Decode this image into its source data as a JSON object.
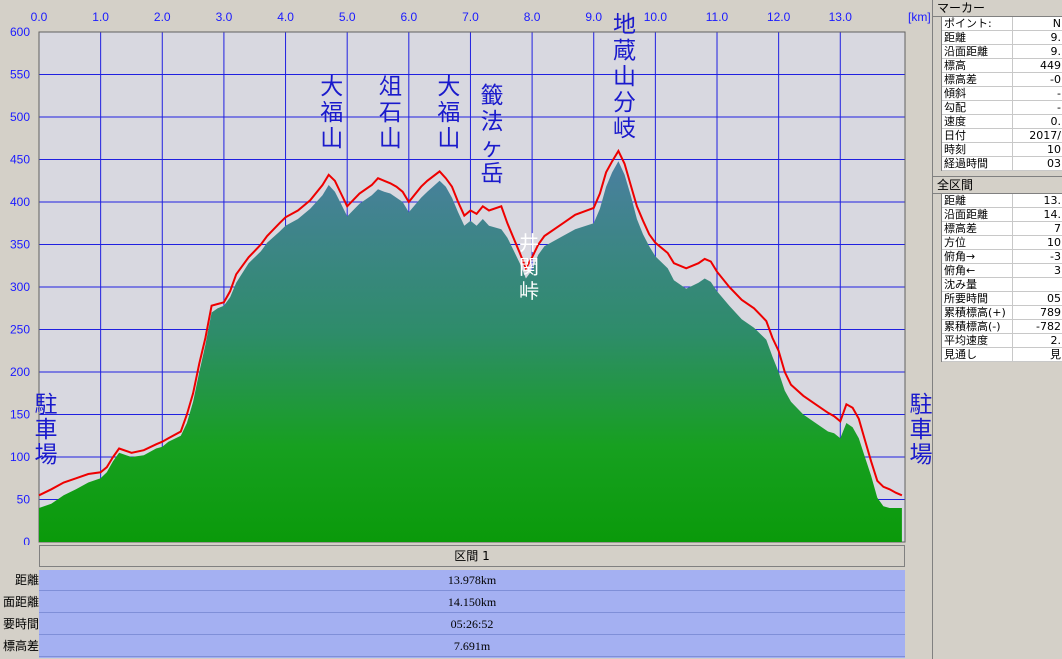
{
  "chart_data": {
    "type": "area",
    "xlabel": "",
    "ylabel": "",
    "x_unit": "[km]",
    "xlim": [
      0,
      14.05
    ],
    "ylim": [
      0,
      600
    ],
    "x_ticks": [
      "0.0",
      "1.0",
      "2.0",
      "3.0",
      "4.0",
      "5.0",
      "6.0",
      "7.0",
      "8.0",
      "9.0",
      "10.0",
      "11.0",
      "12.0",
      "13.0"
    ],
    "y_ticks": [
      "0",
      "50",
      "100",
      "150",
      "200",
      "250",
      "300",
      "350",
      "400",
      "450",
      "500",
      "550",
      "600"
    ],
    "grid": true,
    "series": [
      {
        "color": "#e00000",
        "x": [
          0,
          0.2,
          0.4,
          0.6,
          0.8,
          1.0,
          1.1,
          1.2,
          1.3,
          1.5,
          1.7,
          1.9,
          2.0,
          2.1,
          2.3,
          2.4,
          2.5,
          2.6,
          2.7,
          2.8,
          2.9,
          3.0,
          3.1,
          3.2,
          3.4,
          3.6,
          3.7,
          3.9,
          4.0,
          4.2,
          4.4,
          4.6,
          4.7,
          4.8,
          4.9,
          5.0,
          5.2,
          5.4,
          5.5,
          5.6,
          5.7,
          5.8,
          5.9,
          6.0,
          6.2,
          6.3,
          6.5,
          6.6,
          6.7,
          6.8,
          6.9,
          7.0,
          7.1,
          7.2,
          7.3,
          7.5,
          7.6,
          7.8,
          7.9,
          8.0,
          8.1,
          8.2,
          8.5,
          8.7,
          9.0,
          9.1,
          9.2,
          9.3,
          9.4,
          9.5,
          9.6,
          9.7,
          9.8,
          9.9,
          10.0,
          10.2,
          10.3,
          10.5,
          10.7,
          10.8,
          10.9,
          11.0,
          11.2,
          11.4,
          11.6,
          11.8,
          11.9,
          12.0,
          12.1,
          12.2,
          12.4,
          12.6,
          12.8,
          12.9,
          13.0,
          13.1,
          13.2,
          13.3,
          13.4,
          13.5,
          13.6,
          13.7,
          13.8,
          13.9,
          14.0
        ],
        "y": [
          55,
          62,
          70,
          75,
          80,
          82,
          88,
          100,
          110,
          105,
          108,
          115,
          118,
          122,
          130,
          150,
          175,
          210,
          240,
          278,
          280,
          282,
          295,
          315,
          335,
          350,
          360,
          375,
          382,
          390,
          402,
          420,
          432,
          425,
          410,
          395,
          410,
          420,
          428,
          425,
          422,
          418,
          412,
          400,
          418,
          425,
          436,
          428,
          418,
          400,
          384,
          390,
          386,
          395,
          390,
          395,
          375,
          340,
          322,
          335,
          350,
          360,
          375,
          385,
          393,
          410,
          435,
          448,
          460,
          445,
          420,
          395,
          378,
          362,
          352,
          340,
          328,
          322,
          328,
          333,
          330,
          318,
          300,
          285,
          275,
          260,
          240,
          225,
          200,
          185,
          172,
          162,
          152,
          148,
          142,
          162,
          158,
          145,
          120,
          95,
          72,
          65,
          62,
          58,
          55
        ]
      },
      {
        "color": "#1a9a1a",
        "x": [
          0,
          0.2,
          0.4,
          0.6,
          0.8,
          1.0,
          1.1,
          1.2,
          1.3,
          1.5,
          1.7,
          1.9,
          2.0,
          2.1,
          2.3,
          2.4,
          2.5,
          2.6,
          2.7,
          2.8,
          2.9,
          3.0,
          3.1,
          3.2,
          3.4,
          3.6,
          3.7,
          3.9,
          4.0,
          4.2,
          4.4,
          4.6,
          4.7,
          4.8,
          4.9,
          5.0,
          5.2,
          5.4,
          5.5,
          5.6,
          5.7,
          5.8,
          5.9,
          6.0,
          6.2,
          6.3,
          6.5,
          6.6,
          6.7,
          6.8,
          6.9,
          7.0,
          7.1,
          7.2,
          7.3,
          7.5,
          7.6,
          7.8,
          7.9,
          8.0,
          8.1,
          8.2,
          8.5,
          8.7,
          9.0,
          9.1,
          9.2,
          9.3,
          9.4,
          9.5,
          9.6,
          9.7,
          9.8,
          9.9,
          10.0,
          10.2,
          10.3,
          10.5,
          10.7,
          10.8,
          10.9,
          11.0,
          11.2,
          11.4,
          11.6,
          11.8,
          11.9,
          12.0,
          12.1,
          12.2,
          12.4,
          12.6,
          12.8,
          12.9,
          13.0,
          13.1,
          13.2,
          13.3,
          13.4,
          13.5,
          13.6,
          13.7,
          13.8,
          13.9,
          14.0
        ],
        "y": [
          40,
          45,
          55,
          62,
          70,
          75,
          82,
          95,
          105,
          100,
          102,
          110,
          112,
          118,
          125,
          140,
          165,
          200,
          232,
          270,
          275,
          278,
          288,
          305,
          328,
          342,
          352,
          365,
          372,
          380,
          392,
          408,
          420,
          412,
          398,
          383,
          398,
          408,
          415,
          412,
          410,
          405,
          400,
          388,
          405,
          412,
          425,
          418,
          405,
          388,
          372,
          378,
          372,
          380,
          372,
          368,
          358,
          328,
          310,
          320,
          338,
          348,
          360,
          368,
          375,
          392,
          418,
          435,
          448,
          432,
          408,
          380,
          362,
          348,
          336,
          322,
          308,
          298,
          305,
          310,
          306,
          295,
          278,
          262,
          252,
          238,
          218,
          200,
          178,
          165,
          150,
          140,
          130,
          128,
          122,
          140,
          135,
          122,
          100,
          78,
          52,
          42,
          40,
          40,
          40
        ]
      }
    ],
    "annotations": [
      {
        "text": "大福山",
        "x": 4.75,
        "style": "peak"
      },
      {
        "text": "俎石山",
        "x": 5.7,
        "style": "peak"
      },
      {
        "text": "大福山",
        "x": 6.65,
        "style": "peak"
      },
      {
        "text": "籤法ヶ岳",
        "x": 7.35,
        "style": "peak"
      },
      {
        "text": "地蔵山分岐",
        "x": 9.5,
        "style": "peak"
      },
      {
        "text": "井関峠",
        "x": 7.95,
        "style": "pass"
      },
      {
        "text": "駐車場",
        "x": 0.08,
        "style": "endpoint"
      },
      {
        "text": "駐車場",
        "x": 14.25,
        "style": "endpoint"
      }
    ]
  },
  "section": {
    "header": "区間 1",
    "rows": [
      {
        "label": "距離",
        "value": "13.978km"
      },
      {
        "label": "面距離",
        "value": "14.150km"
      },
      {
        "label": "要時間",
        "value": "05:26:52"
      },
      {
        "label": "標高差",
        "value": "7.691m"
      }
    ]
  },
  "marker_panel": {
    "title": "マーカー",
    "rows": [
      {
        "key": "ポイント:",
        "value": "N"
      },
      {
        "key": "距離",
        "value": "9."
      },
      {
        "key": "沿面距離",
        "value": "9."
      },
      {
        "key": "標高",
        "value": "449"
      },
      {
        "key": "標高差",
        "value": "-0"
      },
      {
        "key": "傾斜",
        "value": "-"
      },
      {
        "key": "勾配",
        "value": "-"
      },
      {
        "key": "速度",
        "value": "0."
      },
      {
        "key": "日付",
        "value": "2017/"
      },
      {
        "key": "時刻",
        "value": "10"
      },
      {
        "key": "経過時間",
        "value": "03"
      }
    ]
  },
  "total_panel": {
    "title": "全区間",
    "rows": [
      {
        "key": "距離",
        "value": "13."
      },
      {
        "key": "沿面距離",
        "value": "14."
      },
      {
        "key": "標高差",
        "value": "7"
      },
      {
        "key": "方位",
        "value": "10"
      },
      {
        "key": "俯角→",
        "value": "-3"
      },
      {
        "key": "俯角←",
        "value": "3"
      },
      {
        "key": "沈み量",
        "value": ""
      },
      {
        "key": "所要時間",
        "value": "05"
      },
      {
        "key": "累積標高(+)",
        "value": "789"
      },
      {
        "key": "累積標高(-)",
        "value": "-782"
      },
      {
        "key": "平均速度",
        "value": "2."
      },
      {
        "key": "見通し",
        "value": "見"
      }
    ]
  }
}
